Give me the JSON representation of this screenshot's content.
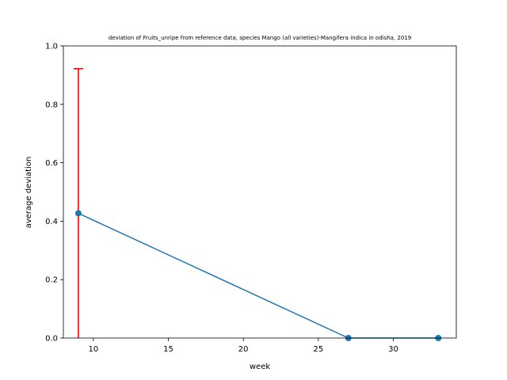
{
  "chart_data": {
    "type": "line",
    "title": "deviation of Fruits_unripe from reference data, species Mango (all varieties)-Mangifera indica in odisha, 2019",
    "xlabel": "week",
    "ylabel": "average deviation",
    "xlim": [
      8,
      34.2
    ],
    "ylim": [
      0,
      1.0
    ],
    "xticks": [
      10,
      15,
      20,
      25,
      30
    ],
    "yticks": [
      0.0,
      0.2,
      0.4,
      0.6,
      0.8,
      1.0
    ],
    "xtick_labels": [
      "10",
      "15",
      "20",
      "25",
      "30"
    ],
    "ytick_labels": [
      "0.0",
      "0.2",
      "0.4",
      "0.6",
      "0.8",
      "1.0"
    ],
    "grid": false,
    "series": [
      {
        "x": [
          9,
          27,
          33
        ],
        "y": [
          0.427,
          0.0,
          0.0
        ],
        "color": "#1f77b4"
      }
    ],
    "error_bars": [
      {
        "x": 9,
        "y_low": 0.0,
        "y_high": 0.922,
        "color": "#ff0000"
      }
    ]
  }
}
